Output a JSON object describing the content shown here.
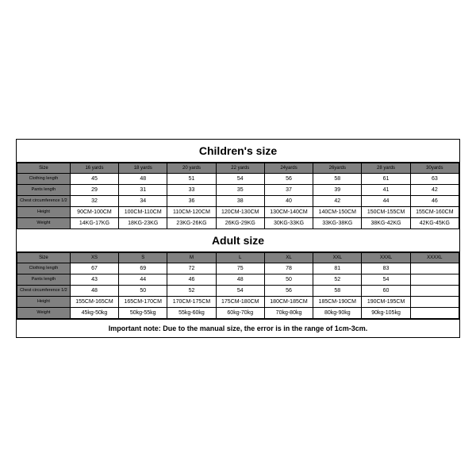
{
  "children": {
    "title": "Children's size",
    "headers": [
      "Size",
      "16 yards",
      "18 yards",
      "20 yards",
      "22 yards",
      "24yards",
      "26yards",
      "28 yards",
      "30yards"
    ],
    "rows": [
      {
        "label": "Clothing length",
        "cells": [
          "45",
          "48",
          "51",
          "54",
          "56",
          "58",
          "61",
          "63"
        ]
      },
      {
        "label": "Pants length",
        "cells": [
          "29",
          "31",
          "33",
          "35",
          "37",
          "39",
          "41",
          "42"
        ]
      },
      {
        "label": "Chest circumference 1/2",
        "cells": [
          "32",
          "34",
          "36",
          "38",
          "40",
          "42",
          "44",
          "46"
        ]
      },
      {
        "label": "Height",
        "cells": [
          "90CM-100CM",
          "100CM-110CM",
          "110CM-120CM",
          "120CM-130CM",
          "130CM-140CM",
          "140CM-150CM",
          "150CM-155CM",
          "155CM-160CM"
        ]
      },
      {
        "label": "Weight",
        "cells": [
          "14KG-17KG",
          "18KG-23KG",
          "23KG-26KG",
          "26KG-29KG",
          "30KG-33KG",
          "33KG-38KG",
          "38KG-42KG",
          "42KG-45KG"
        ]
      }
    ]
  },
  "adult": {
    "title": "Adult size",
    "headers": [
      "Size",
      "XS",
      "S",
      "M",
      "L",
      "XL",
      "XXL",
      "XXXL",
      "XXXXL"
    ],
    "rows": [
      {
        "label": "Clothing length",
        "cells": [
          "67",
          "69",
          "72",
          "75",
          "78",
          "81",
          "83",
          ""
        ]
      },
      {
        "label": "Pants length",
        "cells": [
          "43",
          "44",
          "46",
          "48",
          "50",
          "52",
          "54",
          ""
        ]
      },
      {
        "label": "Chest circumference 1/2",
        "cells": [
          "48",
          "50",
          "52",
          "54",
          "56",
          "58",
          "60",
          ""
        ]
      },
      {
        "label": "Height",
        "cells": [
          "155CM-165CM",
          "165CM-170CM",
          "170CM-175CM",
          "175CM-180CM",
          "180CM-185CM",
          "185CM-190CM",
          "190CM-195CM",
          ""
        ]
      },
      {
        "label": "Weight",
        "cells": [
          "45kg-50kg",
          "50kg-55kg",
          "55kg-60kg",
          "60kg-70kg",
          "70kg-80kg",
          "80kg-90kg",
          "90kg-105kg",
          ""
        ]
      }
    ]
  },
  "note": "Important note: Due to the manual size, the error is in the range of 1cm-3cm."
}
